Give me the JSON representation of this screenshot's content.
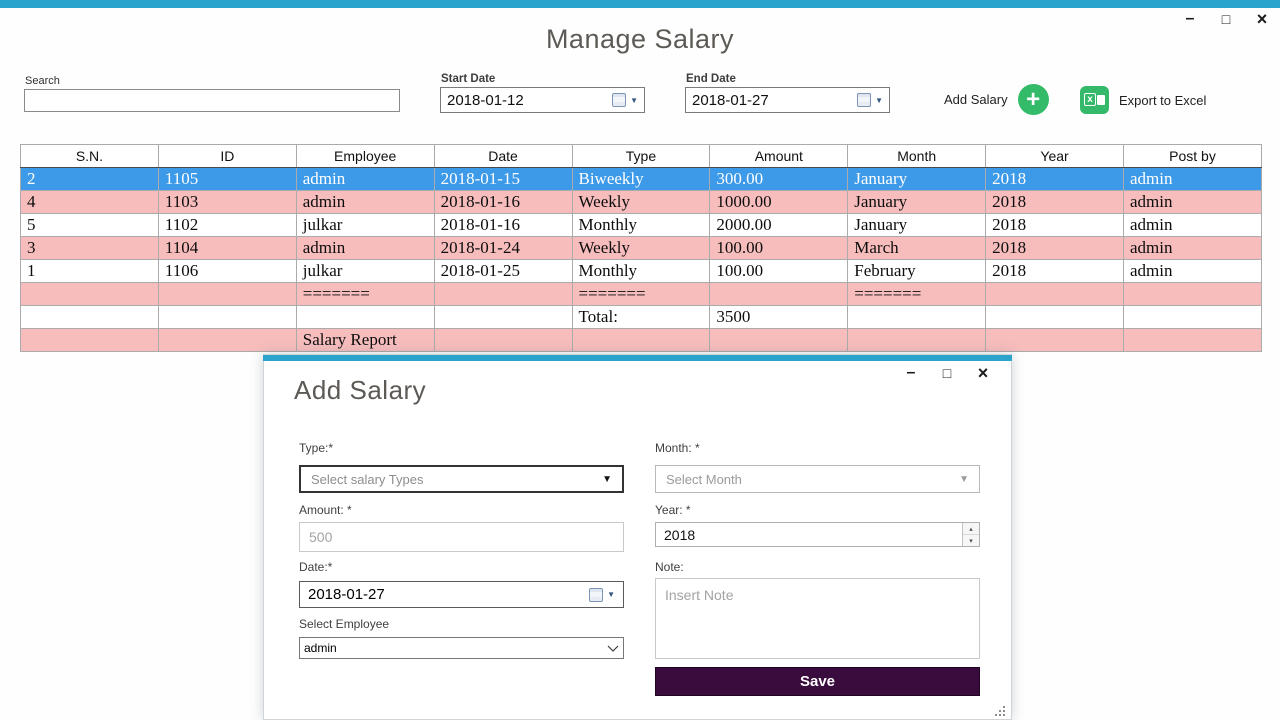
{
  "window": {
    "title": "Manage Salary",
    "controls": {
      "minimize": "–",
      "maximize": "□",
      "close": "×"
    }
  },
  "toolbar": {
    "search_label": "Search",
    "search_value": "",
    "start_date_label": "Start Date",
    "start_date_value": "2018-01-12",
    "end_date_label": "End Date",
    "end_date_value": "2018-01-27",
    "add_salary_label": "Add Salary",
    "export_label": "Export to Excel"
  },
  "icons": {
    "plus": "+",
    "excel_x": "x",
    "dropdown_caret": "▼",
    "date_caret": "▼",
    "spinner_up": "▴",
    "spinner_down": "▾"
  },
  "grid": {
    "columns": [
      "S.N.",
      "ID",
      "Employee",
      "Date",
      "Type",
      "Amount",
      "Month",
      "Year",
      "Post by"
    ],
    "rows": [
      {
        "state": "sel",
        "cells": [
          "2",
          "1105",
          "admin",
          "2018-01-15",
          "Biweekly",
          "300.00",
          "January",
          "2018",
          "admin"
        ]
      },
      {
        "state": "pink",
        "cells": [
          "4",
          "1103",
          "admin",
          "2018-01-16",
          "Weekly",
          "1000.00",
          "January",
          "2018",
          "admin"
        ]
      },
      {
        "state": "white",
        "cells": [
          "5",
          "1102",
          "julkar",
          "2018-01-16",
          "Monthly",
          "2000.00",
          "January",
          "2018",
          "admin"
        ]
      },
      {
        "state": "pink",
        "cells": [
          "3",
          "1104",
          "admin",
          "2018-01-24",
          "Weekly",
          "100.00",
          "March",
          "2018",
          "admin"
        ]
      },
      {
        "state": "white",
        "cells": [
          "1",
          "1106",
          "julkar",
          "2018-01-25",
          "Monthly",
          "100.00",
          "February",
          "2018",
          "admin"
        ]
      },
      {
        "state": "pink",
        "cells": [
          "",
          "",
          "=======",
          "",
          "=======",
          "",
          "=======",
          "",
          ""
        ]
      },
      {
        "state": "white",
        "cells": [
          "",
          "",
          "",
          "",
          "Total:",
          "3500",
          "",
          "",
          ""
        ]
      },
      {
        "state": "pink",
        "cells": [
          "",
          "",
          "Salary Report",
          "",
          "",
          "",
          "",
          "",
          ""
        ]
      }
    ]
  },
  "dialog": {
    "title": "Add Salary",
    "controls": {
      "minimize": "–",
      "maximize": "□",
      "close": "×"
    },
    "fields": {
      "type_label": "Type:*",
      "type_value": "Select salary Types",
      "month_label": "Month: *",
      "month_value": "Select Month",
      "amount_label": "Amount: *",
      "amount_placeholder": "500",
      "year_label": "Year: *",
      "year_value": "2018",
      "date_label": "Date:*",
      "date_value": "2018-01-27",
      "employee_label": "Select Employee",
      "employee_value": "admin",
      "note_label": "Note:",
      "note_placeholder": "Insert Note"
    },
    "save_label": "Save"
  },
  "colors": {
    "accent_teal": "#2AA4CD",
    "selection_blue": "#3D9AE8",
    "row_pink": "#F7BDBD",
    "action_green": "#33BB6A",
    "save_purple": "#3A0C3E"
  }
}
